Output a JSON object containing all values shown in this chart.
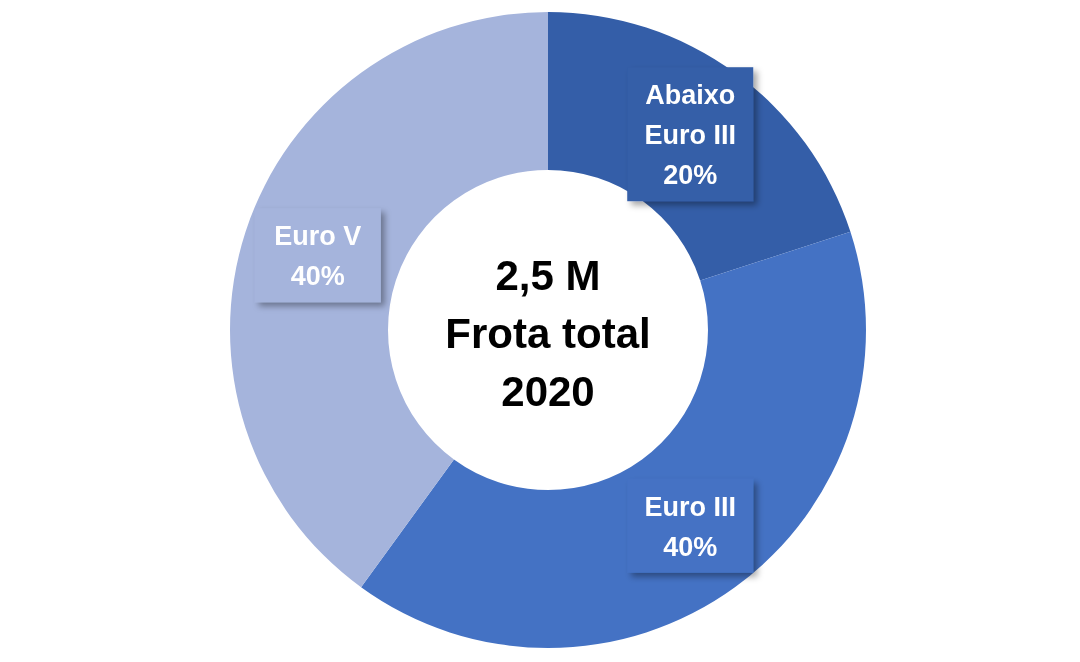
{
  "chart_data": {
    "type": "donut",
    "title": "2,5 M\nFrota total\n2020",
    "categories": [
      "Abaixo Euro III",
      "Euro III",
      "Euro V"
    ],
    "values": [
      20,
      40,
      40
    ],
    "value_labels": [
      "20%",
      "40%",
      "40%"
    ],
    "colors": [
      "#345ea8",
      "#4472c4",
      "#a5b4dc"
    ],
    "legend": false
  }
}
